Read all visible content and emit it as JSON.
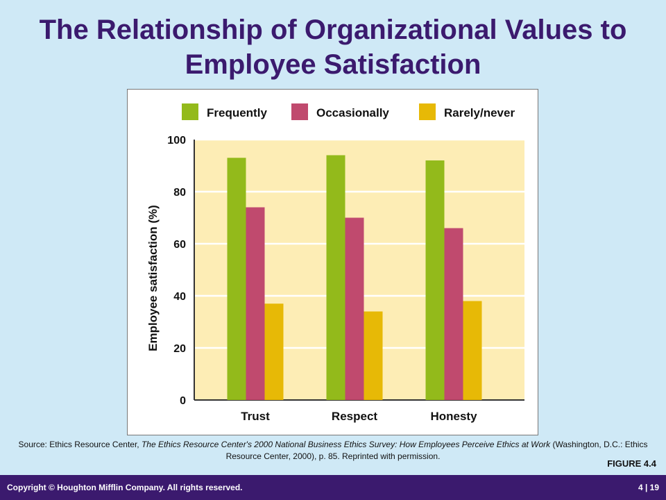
{
  "slide": {
    "title": "The Relationship of Organizational Values to Employee Satisfaction",
    "source_prefix": "Source: Ethics Resource Center, ",
    "source_italic": "The Ethics Resource Center's 2000 National Business Ethics Survey: How Employees Perceive Ethics at Work",
    "source_suffix": " (Washington, D.C.: Ethics Resource Center, 2000), p. 85. Reprinted with permission.",
    "figure_label": "FIGURE 4.4",
    "footer_left": "Copyright © Houghton Mifflin Company. All rights reserved.",
    "footer_right": "4 | 19"
  },
  "colors": {
    "background": "#cfe9f6",
    "title": "#3b1a6e",
    "footer": "#3b1a6e",
    "plot_area": "#fdedb5",
    "frequently": "#93ba1b",
    "occasionally": "#c04a6e",
    "rarely": "#e7b906"
  },
  "chart_data": {
    "type": "bar",
    "title": "",
    "xlabel": "",
    "ylabel": "Employee satisfaction (%)",
    "ylim": [
      0,
      100
    ],
    "yticks": [
      0,
      20,
      40,
      60,
      80,
      100
    ],
    "grid": true,
    "legend_position": "top",
    "categories": [
      "Trust",
      "Respect",
      "Honesty"
    ],
    "series": [
      {
        "name": "Frequently",
        "color": "#93ba1b",
        "values": [
          93,
          94,
          92
        ]
      },
      {
        "name": "Occasionally",
        "color": "#c04a6e",
        "values": [
          74,
          70,
          66
        ]
      },
      {
        "name": "Rarely/never",
        "color": "#e7b906",
        "values": [
          37,
          34,
          38
        ]
      }
    ]
  }
}
